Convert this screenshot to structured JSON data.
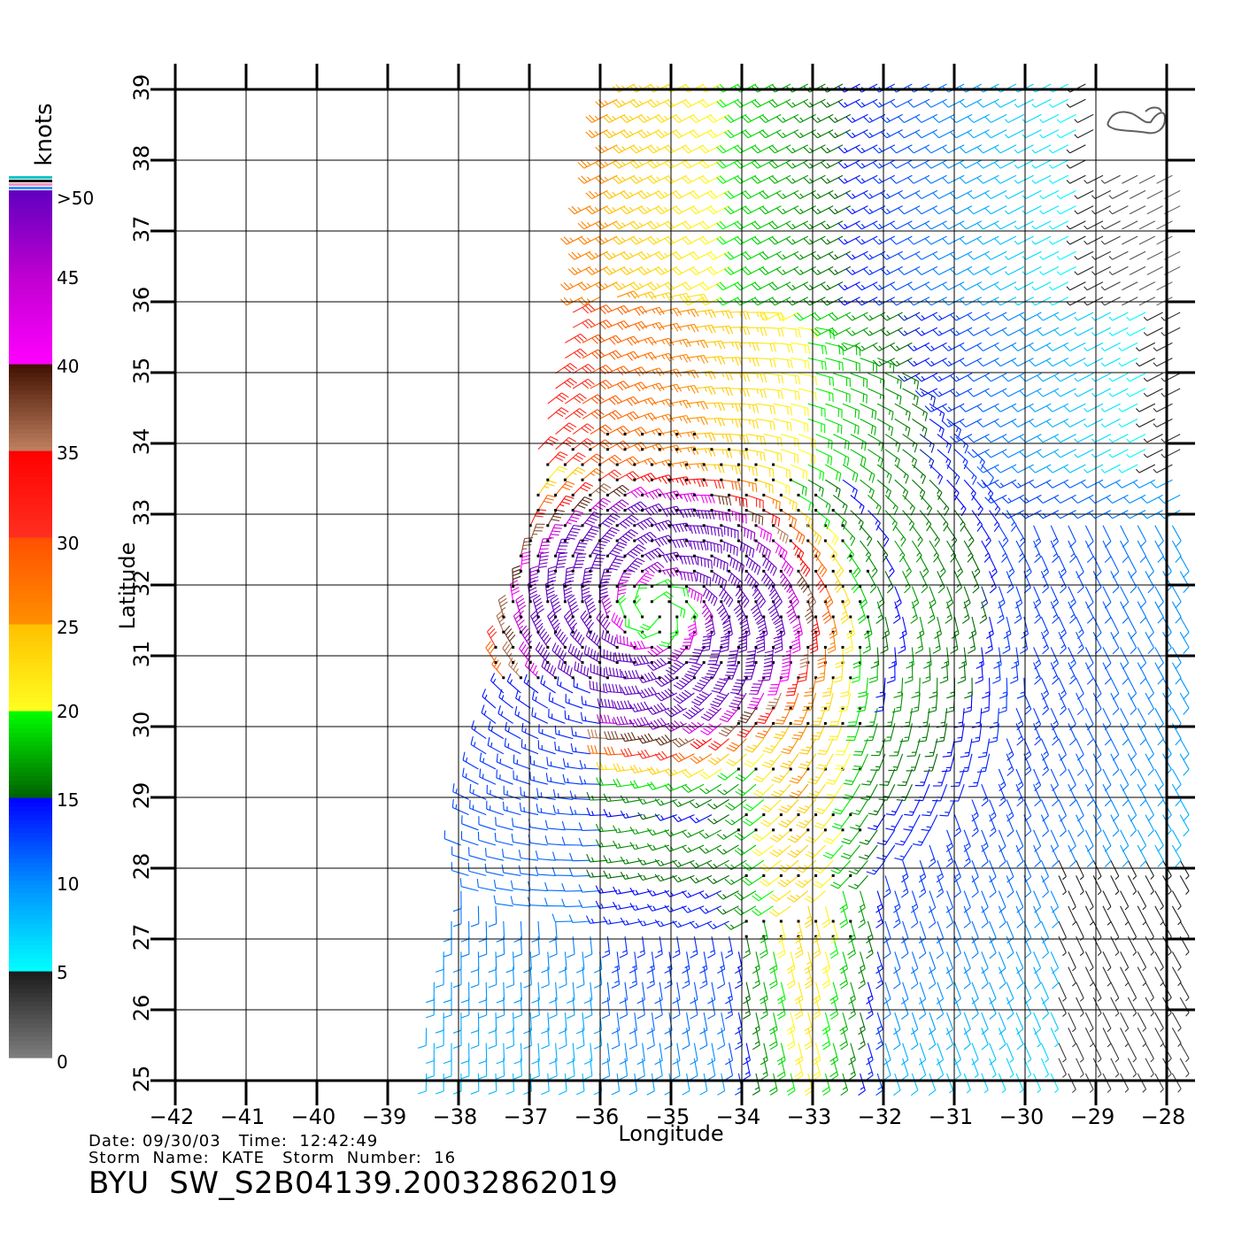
{
  "colorbar": {
    "unit_label": "knots",
    "ticks": [
      "0",
      "5",
      "10",
      "15",
      "20",
      "25",
      "30",
      "35",
      "40",
      "45",
      ">50"
    ],
    "color_stops": [
      {
        "value": 0,
        "color": "#7f7f7f"
      },
      {
        "value": 5,
        "color": "#1a1a1a"
      },
      {
        "value": 5.01,
        "color": "#00ffff"
      },
      {
        "value": 10,
        "color": "#0090ff"
      },
      {
        "value": 15,
        "color": "#0000ff"
      },
      {
        "value": 15.01,
        "color": "#006000"
      },
      {
        "value": 20,
        "color": "#00ff00"
      },
      {
        "value": 20.01,
        "color": "#ffff20"
      },
      {
        "value": 25,
        "color": "#ffc000"
      },
      {
        "value": 25.01,
        "color": "#ff9000"
      },
      {
        "value": 30,
        "color": "#ff5000"
      },
      {
        "value": 30.01,
        "color": "#ff3020"
      },
      {
        "value": 35,
        "color": "#ff0000"
      },
      {
        "value": 35.01,
        "color": "#c08060"
      },
      {
        "value": 40,
        "color": "#401000"
      },
      {
        "value": 40.01,
        "color": "#ff00ff"
      },
      {
        "value": 45,
        "color": "#c000d0"
      },
      {
        "value": 50,
        "color": "#6000c0"
      }
    ]
  },
  "map": {
    "xlabel": "Longitude",
    "ylabel": "Latitude",
    "lon_range": [
      -42,
      -28
    ],
    "lat_range": [
      25,
      39
    ],
    "lon_ticks": [
      "−42",
      "−41",
      "−40",
      "−39",
      "−38",
      "−37",
      "−36",
      "−35",
      "−34",
      "−33",
      "−32",
      "−31",
      "−30",
      "−29",
      "−28"
    ],
    "lat_ticks": [
      "25",
      "26",
      "27",
      "28",
      "29",
      "30",
      "31",
      "32",
      "33",
      "34",
      "35",
      "36",
      "37",
      "38",
      "39"
    ],
    "grid": true
  },
  "chart_data": {
    "type": "wind-barb map",
    "quantity": "wind speed",
    "unit": "knots",
    "storm_center_approx": {
      "lon": -35.2,
      "lat": 31.6
    },
    "swath_corners_approx": [
      {
        "lon": -35.8,
        "lat": 39.2
      },
      {
        "lon": -29.0,
        "lat": 39.2
      },
      {
        "lon": -27.8,
        "lat": 25.0
      },
      {
        "lon": -38.6,
        "lat": 25.0
      }
    ],
    "regions": [
      {
        "name": "northwest swath",
        "speed_kt_range": [
          25,
          30
        ]
      },
      {
        "name": "north-central swath",
        "speed_kt_range": [
          20,
          25
        ]
      },
      {
        "name": "northeast swath",
        "speed_kt_range": [
          15,
          20
        ]
      },
      {
        "name": "eastern edge",
        "speed_kt_range": [
          10,
          15
        ]
      },
      {
        "name": "storm core ring",
        "speed_kt_range": [
          35,
          50
        ]
      },
      {
        "name": "southwest swath",
        "speed_kt_range": [
          5,
          15
        ]
      },
      {
        "name": "southern tail",
        "speed_kt_range": [
          20,
          30
        ]
      },
      {
        "name": "southeast corner",
        "speed_kt_range": [
          0,
          5
        ]
      }
    ]
  },
  "footer": {
    "date_label": "Date:",
    "date": "09/30/03",
    "time_label": "Time:",
    "time": "12:42:49",
    "storm_name_label": "Storm  Name:",
    "storm_name": "KATE",
    "storm_number_label": "Storm  Number:",
    "storm_number": "16",
    "product": "BYU  SW_S2B04139.20032862019"
  }
}
